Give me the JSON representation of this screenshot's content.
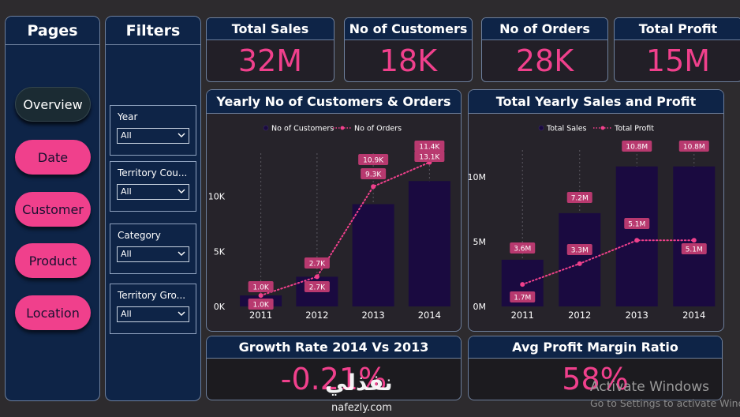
{
  "pages_panel": {
    "title": "Pages",
    "buttons": [
      {
        "label": "Overview",
        "active": true
      },
      {
        "label": "Date",
        "active": false
      },
      {
        "label": "Customer",
        "active": false
      },
      {
        "label": "Product",
        "active": false
      },
      {
        "label": "Location",
        "active": false
      }
    ]
  },
  "filters_panel": {
    "title": "Filters",
    "filters": [
      {
        "label": "Year",
        "value": "All"
      },
      {
        "label": "Territory Cou...",
        "value": "All"
      },
      {
        "label": "Category",
        "value": "All"
      },
      {
        "label": "Territory Gro...",
        "value": "All"
      }
    ]
  },
  "kpis": [
    {
      "title": "Total Sales",
      "value": "32M"
    },
    {
      "title": "No of Customers",
      "value": "18K"
    },
    {
      "title": "No of Orders",
      "value": "28K"
    },
    {
      "title": "Total Profit",
      "value": "15M"
    }
  ],
  "charts": {
    "customers_orders": {
      "title": "Yearly No of Customers & Orders"
    },
    "sales_profit": {
      "title": "Total Yearly Sales and Profit"
    }
  },
  "chart_data": [
    {
      "type": "bar",
      "title": "Yearly No of Customers & Orders",
      "categories": [
        "2011",
        "2012",
        "2013",
        "2014"
      ],
      "series": [
        {
          "name": "No of Customers",
          "kind": "bar",
          "values": [
            1000,
            2700,
            9300,
            11400
          ],
          "labels": [
            "1.0K",
            "2.7K",
            "9.3K",
            "11.4K"
          ]
        },
        {
          "name": "No of Orders",
          "kind": "line",
          "values": [
            1000,
            2700,
            10900,
            13100
          ],
          "labels": [
            "1.0K",
            "2.7K",
            "10.9K",
            "13.1K"
          ]
        }
      ],
      "yticks": [
        "0K",
        "5K",
        "10K"
      ],
      "ylim": [
        0,
        13500
      ],
      "legend": "top-center"
    },
    {
      "type": "bar",
      "title": "Total Yearly Sales and Profit",
      "categories": [
        "2011",
        "2012",
        "2013",
        "2014"
      ],
      "series": [
        {
          "name": "Total Sales",
          "kind": "bar",
          "values": [
            3600000,
            7200000,
            10800000,
            10800000
          ],
          "labels": [
            "3.6M",
            "7.2M",
            "10.8M",
            "10.8M"
          ]
        },
        {
          "name": "Total Profit",
          "kind": "line",
          "values": [
            1700000,
            3300000,
            5100000,
            5100000
          ],
          "labels": [
            "1.7M",
            "3.3M",
            "5.1M",
            "5.1M"
          ]
        }
      ],
      "yticks": [
        "0M",
        "5M",
        "10M"
      ],
      "ylim": [
        0,
        11700000
      ],
      "legend": "top-center"
    }
  ],
  "rates": [
    {
      "title": "Growth Rate 2014 Vs 2013",
      "value": "-0.21%"
    },
    {
      "title": "Avg Profit Margin Ratio",
      "value": "58%"
    }
  ],
  "overlays": {
    "watermark_arabic": "نفذلي",
    "watermark_url": "nafezly.com",
    "activate_title": "Activate Windows",
    "activate_sub": "Go to Settings to activate Windows."
  },
  "colors": {
    "panel": "#0e2447",
    "accent_pink": "#f0408c",
    "bar": "#1a0a40",
    "background": "#2d2b2e"
  }
}
